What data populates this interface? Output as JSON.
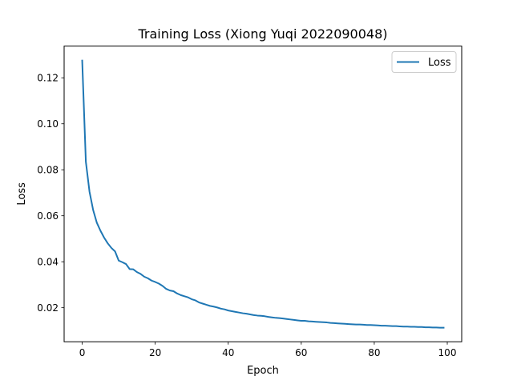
{
  "chart_data": {
    "type": "line",
    "title": "Training Loss (Xiong Yuqi 2022090048)",
    "xlabel": "Epoch",
    "ylabel": "Loss",
    "xlim": [
      -4.95,
      103.95
    ],
    "ylim": [
      0.0052,
      0.1338
    ],
    "x_ticks": [
      0,
      20,
      40,
      60,
      80,
      100
    ],
    "y_ticks": [
      0.02,
      0.04,
      0.06,
      0.08,
      0.1,
      0.12
    ],
    "x_tick_labels": [
      "0",
      "20",
      "40",
      "60",
      "80",
      "100"
    ],
    "y_tick_labels": [
      "0.02",
      "0.04",
      "0.06",
      "0.08",
      "0.10",
      "0.12"
    ],
    "grid": false,
    "legend_position": "top-right",
    "series": [
      {
        "name": "Loss",
        "color": "#1f77b4",
        "x": [
          0,
          1,
          2,
          3,
          4,
          5,
          6,
          7,
          8,
          9,
          10,
          11,
          12,
          13,
          14,
          15,
          16,
          17,
          18,
          19,
          20,
          21,
          22,
          23,
          24,
          25,
          26,
          27,
          28,
          29,
          30,
          31,
          32,
          33,
          34,
          35,
          36,
          37,
          38,
          39,
          40,
          41,
          42,
          43,
          44,
          45,
          46,
          47,
          48,
          49,
          50,
          51,
          52,
          53,
          54,
          55,
          56,
          57,
          58,
          59,
          60,
          61,
          62,
          63,
          64,
          65,
          66,
          67,
          68,
          69,
          70,
          71,
          72,
          73,
          74,
          75,
          76,
          77,
          78,
          79,
          80,
          81,
          82,
          83,
          84,
          85,
          86,
          87,
          88,
          89,
          90,
          91,
          92,
          93,
          94,
          95,
          96,
          97,
          98,
          99
        ],
        "values": [
          0.1275,
          0.0835,
          0.0705,
          0.0625,
          0.057,
          0.0535,
          0.0505,
          0.048,
          0.046,
          0.0445,
          0.0405,
          0.0398,
          0.039,
          0.0368,
          0.0367,
          0.0355,
          0.0347,
          0.0335,
          0.0328,
          0.0318,
          0.0312,
          0.0305,
          0.0295,
          0.0282,
          0.0275,
          0.0272,
          0.0262,
          0.0255,
          0.025,
          0.0245,
          0.0237,
          0.0232,
          0.0223,
          0.0218,
          0.0213,
          0.0208,
          0.0205,
          0.0201,
          0.0196,
          0.0193,
          0.0188,
          0.0185,
          0.0182,
          0.0179,
          0.0176,
          0.0174,
          0.0171,
          0.0168,
          0.0166,
          0.0165,
          0.0163,
          0.016,
          0.0158,
          0.0156,
          0.0155,
          0.0153,
          0.0151,
          0.0149,
          0.0147,
          0.0145,
          0.0143,
          0.0143,
          0.0141,
          0.014,
          0.0139,
          0.0138,
          0.0137,
          0.0136,
          0.0134,
          0.0133,
          0.0132,
          0.0131,
          0.013,
          0.0129,
          0.0128,
          0.0127,
          0.0127,
          0.0126,
          0.0125,
          0.0125,
          0.0124,
          0.0123,
          0.0122,
          0.0122,
          0.0121,
          0.012,
          0.012,
          0.0119,
          0.0118,
          0.0118,
          0.0117,
          0.0117,
          0.0116,
          0.0116,
          0.0115,
          0.0115,
          0.0114,
          0.0114,
          0.0113,
          0.0113
        ]
      }
    ]
  }
}
